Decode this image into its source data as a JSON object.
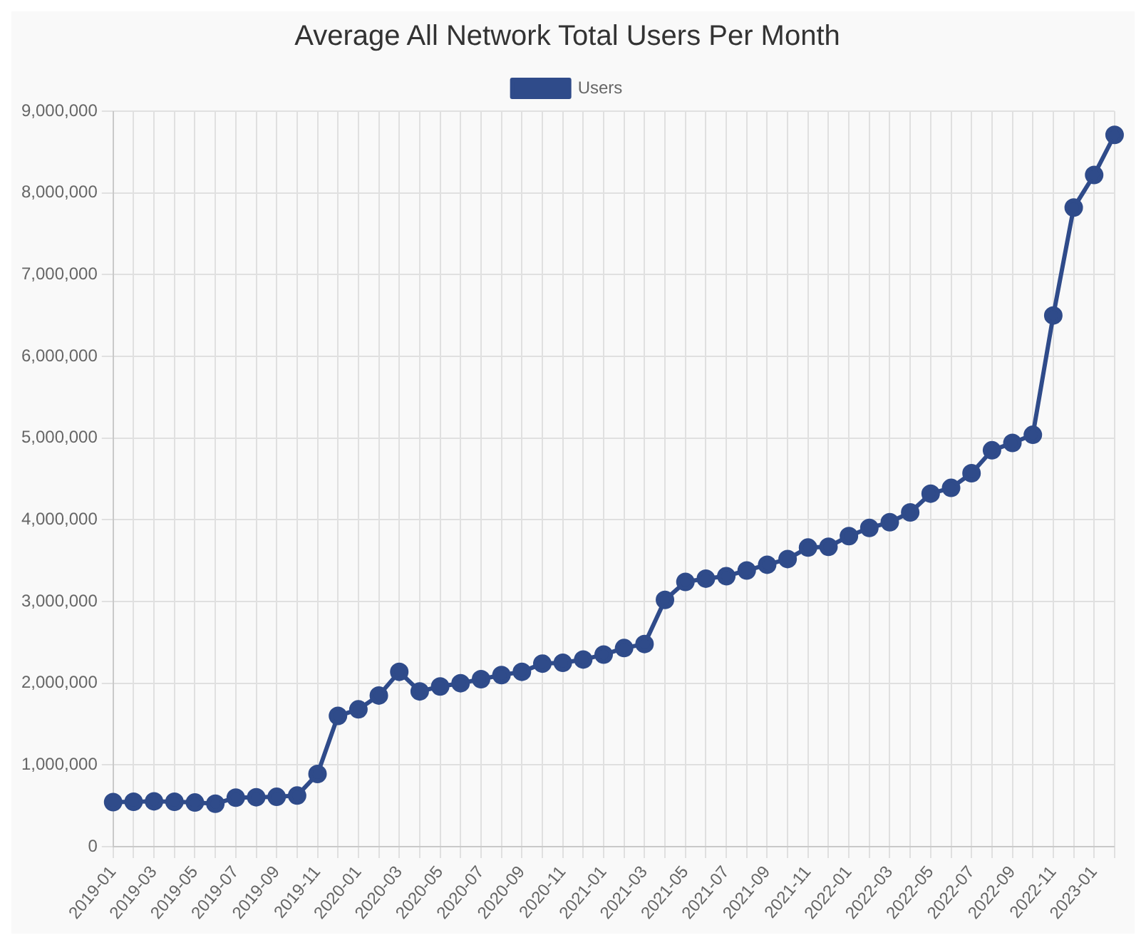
{
  "chart_data": {
    "type": "line",
    "title": "Average All Network Total Users Per Month",
    "categories": [
      "2019-01",
      null,
      "2019-03",
      null,
      "2019-05",
      null,
      "2019-07",
      null,
      "2019-09",
      null,
      "2019-11",
      null,
      "2020-01",
      null,
      "2020-03",
      null,
      "2020-05",
      null,
      "2020-07",
      null,
      "2020-09",
      null,
      "2020-11",
      null,
      "2021-01",
      null,
      "2021-03",
      null,
      "2021-05",
      null,
      "2021-07",
      null,
      "2021-09",
      null,
      "2021-11",
      null,
      "2022-01",
      null,
      "2022-03",
      null,
      "2022-05",
      null,
      "2022-07",
      null,
      "2022-09",
      null,
      "2022-11",
      null,
      "2023-01",
      null
    ],
    "series": [
      {
        "name": "Users",
        "color": "#2f4b8a",
        "values": [
          545000,
          550000,
          555000,
          550000,
          540000,
          525000,
          600000,
          605000,
          610000,
          625000,
          890000,
          1600000,
          1680000,
          1850000,
          2140000,
          1900000,
          1960000,
          2000000,
          2050000,
          2100000,
          2140000,
          2240000,
          2250000,
          2290000,
          2350000,
          2430000,
          2480000,
          3020000,
          3240000,
          3280000,
          3310000,
          3380000,
          3450000,
          3520000,
          3660000,
          3670000,
          3800000,
          3900000,
          3970000,
          4090000,
          4320000,
          4390000,
          4570000,
          4850000,
          4940000,
          5040000,
          6500000,
          7820000,
          8220000,
          8710000
        ]
      }
    ],
    "ylim": [
      0,
      9000000
    ],
    "yticks": [
      {
        "value": 0,
        "label": "0"
      },
      {
        "value": 1000000,
        "label": "1,000,000"
      },
      {
        "value": 2000000,
        "label": "2,000,000"
      },
      {
        "value": 3000000,
        "label": "3,000,000"
      },
      {
        "value": 4000000,
        "label": "4,000,000"
      },
      {
        "value": 5000000,
        "label": "5,000,000"
      },
      {
        "value": 6000000,
        "label": "6,000,000"
      },
      {
        "value": 7000000,
        "label": "7,000,000"
      },
      {
        "value": 8000000,
        "label": "8,000,000"
      },
      {
        "value": 9000000,
        "label": "9,000,000"
      }
    ],
    "grid": true,
    "legend": "top",
    "marker": "circle",
    "line_style": "solid"
  }
}
